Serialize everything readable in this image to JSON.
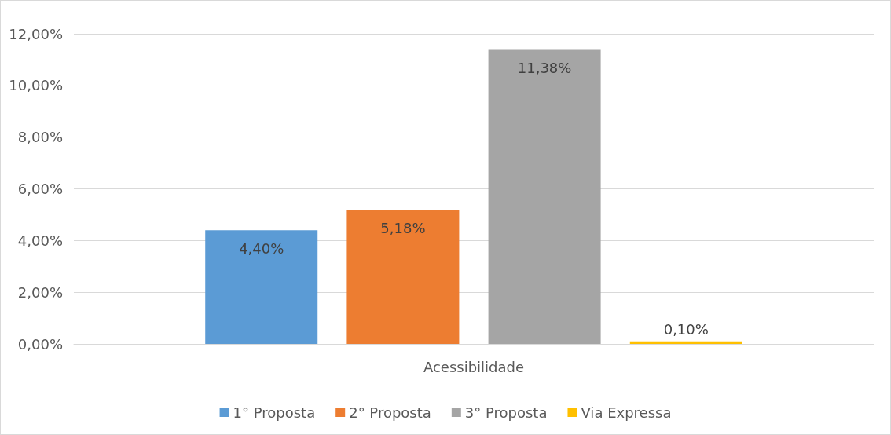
{
  "chart_data": {
    "type": "bar",
    "categories": [
      "Acessibilidade"
    ],
    "series": [
      {
        "name": "1° Proposta",
        "color": "#5b9bd5",
        "values": [
          4.4
        ],
        "value_labels": [
          "4,40%"
        ]
      },
      {
        "name": "2° Proposta",
        "color": "#ed7d31",
        "values": [
          5.18
        ],
        "value_labels": [
          "5,18%"
        ]
      },
      {
        "name": "3° Proposta",
        "color": "#a5a5a5",
        "values": [
          11.38
        ],
        "value_labels": [
          "11,38%"
        ]
      },
      {
        "name": "Via Expressa",
        "color": "#ffc000",
        "values": [
          0.1
        ],
        "value_labels": [
          "0,10%"
        ]
      }
    ],
    "ylim": [
      0,
      12
    ],
    "yticks": [
      {
        "value": 0,
        "label": "0,00%"
      },
      {
        "value": 2,
        "label": "2,00%"
      },
      {
        "value": 4,
        "label": "4,00%"
      },
      {
        "value": 6,
        "label": "6,00%"
      },
      {
        "value": 8,
        "label": "8,00%"
      },
      {
        "value": 10,
        "label": "10,00%"
      },
      {
        "value": 12,
        "label": "12,00%"
      }
    ],
    "grid": "y",
    "legend": "bottom"
  }
}
